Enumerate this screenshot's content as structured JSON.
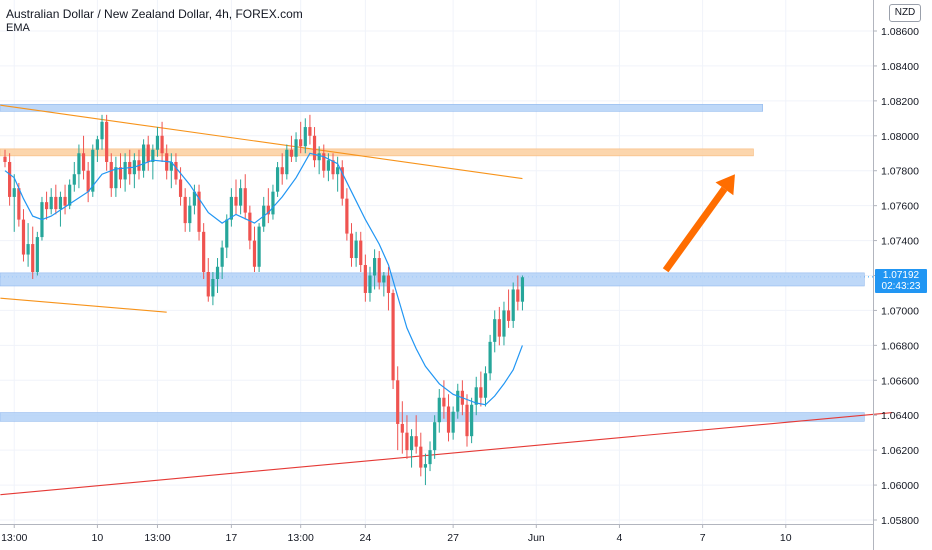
{
  "header": {
    "title": "Australian Dollar / New Zealand Dollar, 4h, FOREX.com",
    "indicator": "EMA"
  },
  "currency_button": "NZD",
  "price_label": {
    "price": "1.07192",
    "countdown": "02:43:23"
  },
  "colors": {
    "up": "#26a69a",
    "down": "#ef5350",
    "ema": "#2196f3",
    "zone_blue": "#b3d1f7",
    "zone_orange": "#fbcf9f",
    "trend_orange": "#f7931a",
    "trend_red": "#e53935",
    "arrow": "#ff6d00"
  },
  "chart_data": {
    "type": "candlestick",
    "title": "Australian Dollar / New Zealand Dollar, 4h, FOREX.com",
    "ylim": [
      1.0577,
      1.0875
    ],
    "y_ticks": [
      "1.08600",
      "1.08400",
      "1.08200",
      "1.08000",
      "1.07800",
      "1.07600",
      "1.07400",
      "1.07200",
      "1.07000",
      "1.06800",
      "1.06600",
      "1.06400",
      "1.06200",
      "1.06000",
      "1.05800"
    ],
    "x_ticks": [
      {
        "label": "13:00",
        "bar": 2
      },
      {
        "label": "10",
        "bar": 20
      },
      {
        "label": "13:00",
        "bar": 33
      },
      {
        "label": "17",
        "bar": 49
      },
      {
        "label": "13:00",
        "bar": 64
      },
      {
        "label": "24",
        "bar": 78
      },
      {
        "label": "27",
        "bar": 97
      },
      {
        "label": "Jun",
        "bar": 115
      },
      {
        "label": "4",
        "bar": 133
      },
      {
        "label": "7",
        "bar": 151
      },
      {
        "label": "10",
        "bar": 169
      }
    ],
    "bars_total": 186,
    "ohlc": [
      [
        1.0788,
        1.0792,
        1.0782,
        1.0785
      ],
      [
        1.0785,
        1.079,
        1.076,
        1.0765
      ],
      [
        1.0765,
        1.0778,
        1.0745,
        1.077
      ],
      [
        1.077,
        1.0773,
        1.0748,
        1.0752
      ],
      [
        1.0752,
        1.0758,
        1.0728,
        1.0732
      ],
      [
        1.0732,
        1.075,
        1.0725,
        1.0738
      ],
      [
        1.0738,
        1.0748,
        1.0718,
        1.0722
      ],
      [
        1.0722,
        1.0745,
        1.072,
        1.0742
      ],
      [
        1.0742,
        1.0765,
        1.074,
        1.0762
      ],
      [
        1.0762,
        1.0768,
        1.0752,
        1.0758
      ],
      [
        1.0758,
        1.077,
        1.0755,
        1.0765
      ],
      [
        1.0765,
        1.0772,
        1.0755,
        1.0758
      ],
      [
        1.0758,
        1.0768,
        1.0748,
        1.0765
      ],
      [
        1.0765,
        1.0772,
        1.0755,
        1.076
      ],
      [
        1.076,
        1.0775,
        1.0758,
        1.0772
      ],
      [
        1.0772,
        1.0785,
        1.0768,
        1.0778
      ],
      [
        1.0778,
        1.0795,
        1.077,
        1.079
      ],
      [
        1.079,
        1.08,
        1.0775,
        1.078
      ],
      [
        1.078,
        1.0785,
        1.0762,
        1.0768
      ],
      [
        1.0768,
        1.0795,
        1.0765,
        1.0792
      ],
      [
        1.0792,
        1.08,
        1.0785,
        1.0798
      ],
      [
        1.0798,
        1.0812,
        1.0792,
        1.0808
      ],
      [
        1.0808,
        1.0812,
        1.078,
        1.0785
      ],
      [
        1.0785,
        1.079,
        1.0765,
        1.077
      ],
      [
        1.077,
        1.0788,
        1.0765,
        1.0782
      ],
      [
        1.0782,
        1.079,
        1.077,
        1.0775
      ],
      [
        1.0775,
        1.079,
        1.0768,
        1.0785
      ],
      [
        1.0785,
        1.0792,
        1.0772,
        1.0778
      ],
      [
        1.0778,
        1.079,
        1.077,
        1.0786
      ],
      [
        1.0786,
        1.0792,
        1.0775,
        1.078
      ],
      [
        1.078,
        1.0798,
        1.0776,
        1.0795
      ],
      [
        1.0795,
        1.08,
        1.078,
        1.0785
      ],
      [
        1.0785,
        1.0795,
        1.0775,
        1.0792
      ],
      [
        1.0792,
        1.0805,
        1.0788,
        1.08
      ],
      [
        1.08,
        1.0808,
        1.0785,
        1.079
      ],
      [
        1.079,
        1.0795,
        1.0775,
        1.078
      ],
      [
        1.078,
        1.079,
        1.077,
        1.0785
      ],
      [
        1.0785,
        1.079,
        1.0772,
        1.0775
      ],
      [
        1.0775,
        1.0782,
        1.076,
        1.0765
      ],
      [
        1.0765,
        1.077,
        1.0745,
        1.075
      ],
      [
        1.075,
        1.0765,
        1.0745,
        1.076
      ],
      [
        1.076,
        1.0772,
        1.0755,
        1.0768
      ],
      [
        1.0768,
        1.0772,
        1.074,
        1.0745
      ],
      [
        1.0745,
        1.075,
        1.0718,
        1.0722
      ],
      [
        1.0722,
        1.073,
        1.0705,
        1.0708
      ],
      [
        1.0708,
        1.0722,
        1.0703,
        1.0718
      ],
      [
        1.0718,
        1.073,
        1.071,
        1.0725
      ],
      [
        1.0725,
        1.074,
        1.0718,
        1.0736
      ],
      [
        1.0736,
        1.0755,
        1.073,
        1.0752
      ],
      [
        1.0752,
        1.077,
        1.0748,
        1.0765
      ],
      [
        1.0765,
        1.0775,
        1.0755,
        1.076
      ],
      [
        1.076,
        1.0775,
        1.0755,
        1.077
      ],
      [
        1.077,
        1.0778,
        1.0752,
        1.0756
      ],
      [
        1.0756,
        1.076,
        1.0735,
        1.074
      ],
      [
        1.074,
        1.0748,
        1.0722,
        1.0725
      ],
      [
        1.0725,
        1.075,
        1.0722,
        1.0748
      ],
      [
        1.0748,
        1.0765,
        1.0745,
        1.076
      ],
      [
        1.076,
        1.077,
        1.075,
        1.0755
      ],
      [
        1.0755,
        1.0772,
        1.0752,
        1.0768
      ],
      [
        1.0768,
        1.0785,
        1.0765,
        1.0782
      ],
      [
        1.0782,
        1.079,
        1.0772,
        1.0778
      ],
      [
        1.0778,
        1.0795,
        1.0775,
        1.0792
      ],
      [
        1.0792,
        1.08,
        1.0785,
        1.0788
      ],
      [
        1.0788,
        1.0802,
        1.0785,
        1.0798
      ],
      [
        1.0798,
        1.0808,
        1.079,
        1.0794
      ],
      [
        1.0794,
        1.081,
        1.079,
        1.0805
      ],
      [
        1.0805,
        1.0812,
        1.0795,
        1.08
      ],
      [
        1.08,
        1.0805,
        1.0782,
        1.0786
      ],
      [
        1.0786,
        1.0794,
        1.0778,
        1.079
      ],
      [
        1.079,
        1.0795,
        1.0776,
        1.078
      ],
      [
        1.078,
        1.079,
        1.0774,
        1.0786
      ],
      [
        1.0786,
        1.079,
        1.0775,
        1.0778
      ],
      [
        1.0778,
        1.0788,
        1.0768,
        1.0782
      ],
      [
        1.0782,
        1.0786,
        1.076,
        1.0764
      ],
      [
        1.0764,
        1.077,
        1.074,
        1.0744
      ],
      [
        1.0744,
        1.075,
        1.0725,
        1.073
      ],
      [
        1.073,
        1.0745,
        1.0725,
        1.074
      ],
      [
        1.074,
        1.0745,
        1.0722,
        1.0726
      ],
      [
        1.0726,
        1.0732,
        1.0705,
        1.071
      ],
      [
        1.071,
        1.0725,
        1.0705,
        1.072
      ],
      [
        1.072,
        1.0735,
        1.0712,
        1.073
      ],
      [
        1.073,
        1.0734,
        1.0712,
        1.0716
      ],
      [
        1.0716,
        1.0722,
        1.0708,
        1.072
      ],
      [
        1.072,
        1.0725,
        1.07,
        1.071
      ],
      [
        1.071,
        1.0712,
        1.0655,
        1.066
      ],
      [
        1.066,
        1.0668,
        1.062,
        1.0635
      ],
      [
        1.0635,
        1.0648,
        1.0618,
        1.063
      ],
      [
        1.063,
        1.064,
        1.0615,
        1.062
      ],
      [
        1.062,
        1.0632,
        1.061,
        1.0628
      ],
      [
        1.0628,
        1.064,
        1.0618,
        1.0622
      ],
      [
        1.0622,
        1.063,
        1.0605,
        1.061
      ],
      [
        1.061,
        1.0618,
        1.06,
        1.0612
      ],
      [
        1.0612,
        1.0625,
        1.0608,
        1.062
      ],
      [
        1.062,
        1.064,
        1.0615,
        1.0636
      ],
      [
        1.0636,
        1.0655,
        1.063,
        1.065
      ],
      [
        1.065,
        1.066,
        1.0638,
        1.0645
      ],
      [
        1.0645,
        1.0652,
        1.0625,
        1.063
      ],
      [
        1.063,
        1.0645,
        1.0626,
        1.0642
      ],
      [
        1.0642,
        1.0658,
        1.0638,
        1.0654
      ],
      [
        1.0654,
        1.066,
        1.064,
        1.0646
      ],
      [
        1.0646,
        1.0652,
        1.0622,
        1.0628
      ],
      [
        1.0628,
        1.065,
        1.0624,
        1.0646
      ],
      [
        1.0646,
        1.0662,
        1.064,
        1.0656
      ],
      [
        1.0656,
        1.0665,
        1.0645,
        1.065
      ],
      [
        1.065,
        1.0668,
        1.0645,
        1.0664
      ],
      [
        1.0664,
        1.0686,
        1.066,
        1.0682
      ],
      [
        1.0682,
        1.07,
        1.0676,
        1.0695
      ],
      [
        1.0695,
        1.0702,
        1.068,
        1.0685
      ],
      [
        1.0685,
        1.0705,
        1.068,
        1.07
      ],
      [
        1.07,
        1.0712,
        1.069,
        1.0694
      ],
      [
        1.0694,
        1.0716,
        1.069,
        1.0712
      ],
      [
        1.0712,
        1.072,
        1.07,
        1.0705
      ],
      [
        1.0705,
        1.072,
        1.07,
        1.0719
      ]
    ],
    "ema": [
      [
        0,
        1.078
      ],
      [
        2,
        1.0776
      ],
      [
        4,
        1.0764
      ],
      [
        6,
        1.0754
      ],
      [
        8,
        1.0752
      ],
      [
        10,
        1.0754
      ],
      [
        14,
        1.0761
      ],
      [
        18,
        1.0768
      ],
      [
        21,
        1.0778
      ],
      [
        24,
        1.0781
      ],
      [
        28,
        1.0782
      ],
      [
        32,
        1.0786
      ],
      [
        36,
        1.0785
      ],
      [
        40,
        1.0772
      ],
      [
        44,
        1.0756
      ],
      [
        47,
        1.075
      ],
      [
        50,
        1.0755
      ],
      [
        54,
        1.075
      ],
      [
        57,
        1.0756
      ],
      [
        60,
        1.0765
      ],
      [
        63,
        1.0776
      ],
      [
        66,
        1.079
      ],
      [
        69,
        1.0788
      ],
      [
        72,
        1.0784
      ],
      [
        75,
        1.0768
      ],
      [
        78,
        1.0752
      ],
      [
        81,
        1.0738
      ],
      [
        83,
        1.0726
      ],
      [
        85,
        1.0708
      ],
      [
        87,
        1.069
      ],
      [
        89,
        1.0678
      ],
      [
        91,
        1.0668
      ],
      [
        94,
        1.0658
      ],
      [
        97,
        1.0652
      ],
      [
        100,
        1.0649
      ],
      [
        102,
        1.0647
      ],
      [
        104,
        1.0646
      ],
      [
        106,
        1.0651
      ],
      [
        108,
        1.0658
      ],
      [
        110,
        1.0666
      ],
      [
        112,
        1.068
      ]
    ],
    "zones": [
      {
        "kind": "blue",
        "y1": 1.0814,
        "y2": 1.0818,
        "x_end_bar": 164
      },
      {
        "kind": "orange",
        "y1": 1.07885,
        "y2": 1.07925,
        "x_end_bar": 162
      },
      {
        "kind": "blue",
        "y1": 1.0714,
        "y2": 1.07215,
        "x_end_bar": 186
      },
      {
        "kind": "blue",
        "y1": 1.06365,
        "y2": 1.06415,
        "x_end_bar": 186
      }
    ],
    "trendlines": [
      {
        "kind": "orange",
        "from": [
          -1,
          1.08175
        ],
        "to": [
          112,
          1.07755
        ]
      },
      {
        "kind": "orange",
        "from": [
          -1,
          1.0707
        ],
        "to": [
          35,
          1.0699
        ]
      },
      {
        "kind": "red",
        "from": [
          -1,
          1.05945
        ],
        "to": [
          192,
          1.06415
        ]
      }
    ],
    "arrow": {
      "from": [
        143,
        1.0723
      ],
      "to": [
        158,
        1.0778
      ]
    }
  }
}
